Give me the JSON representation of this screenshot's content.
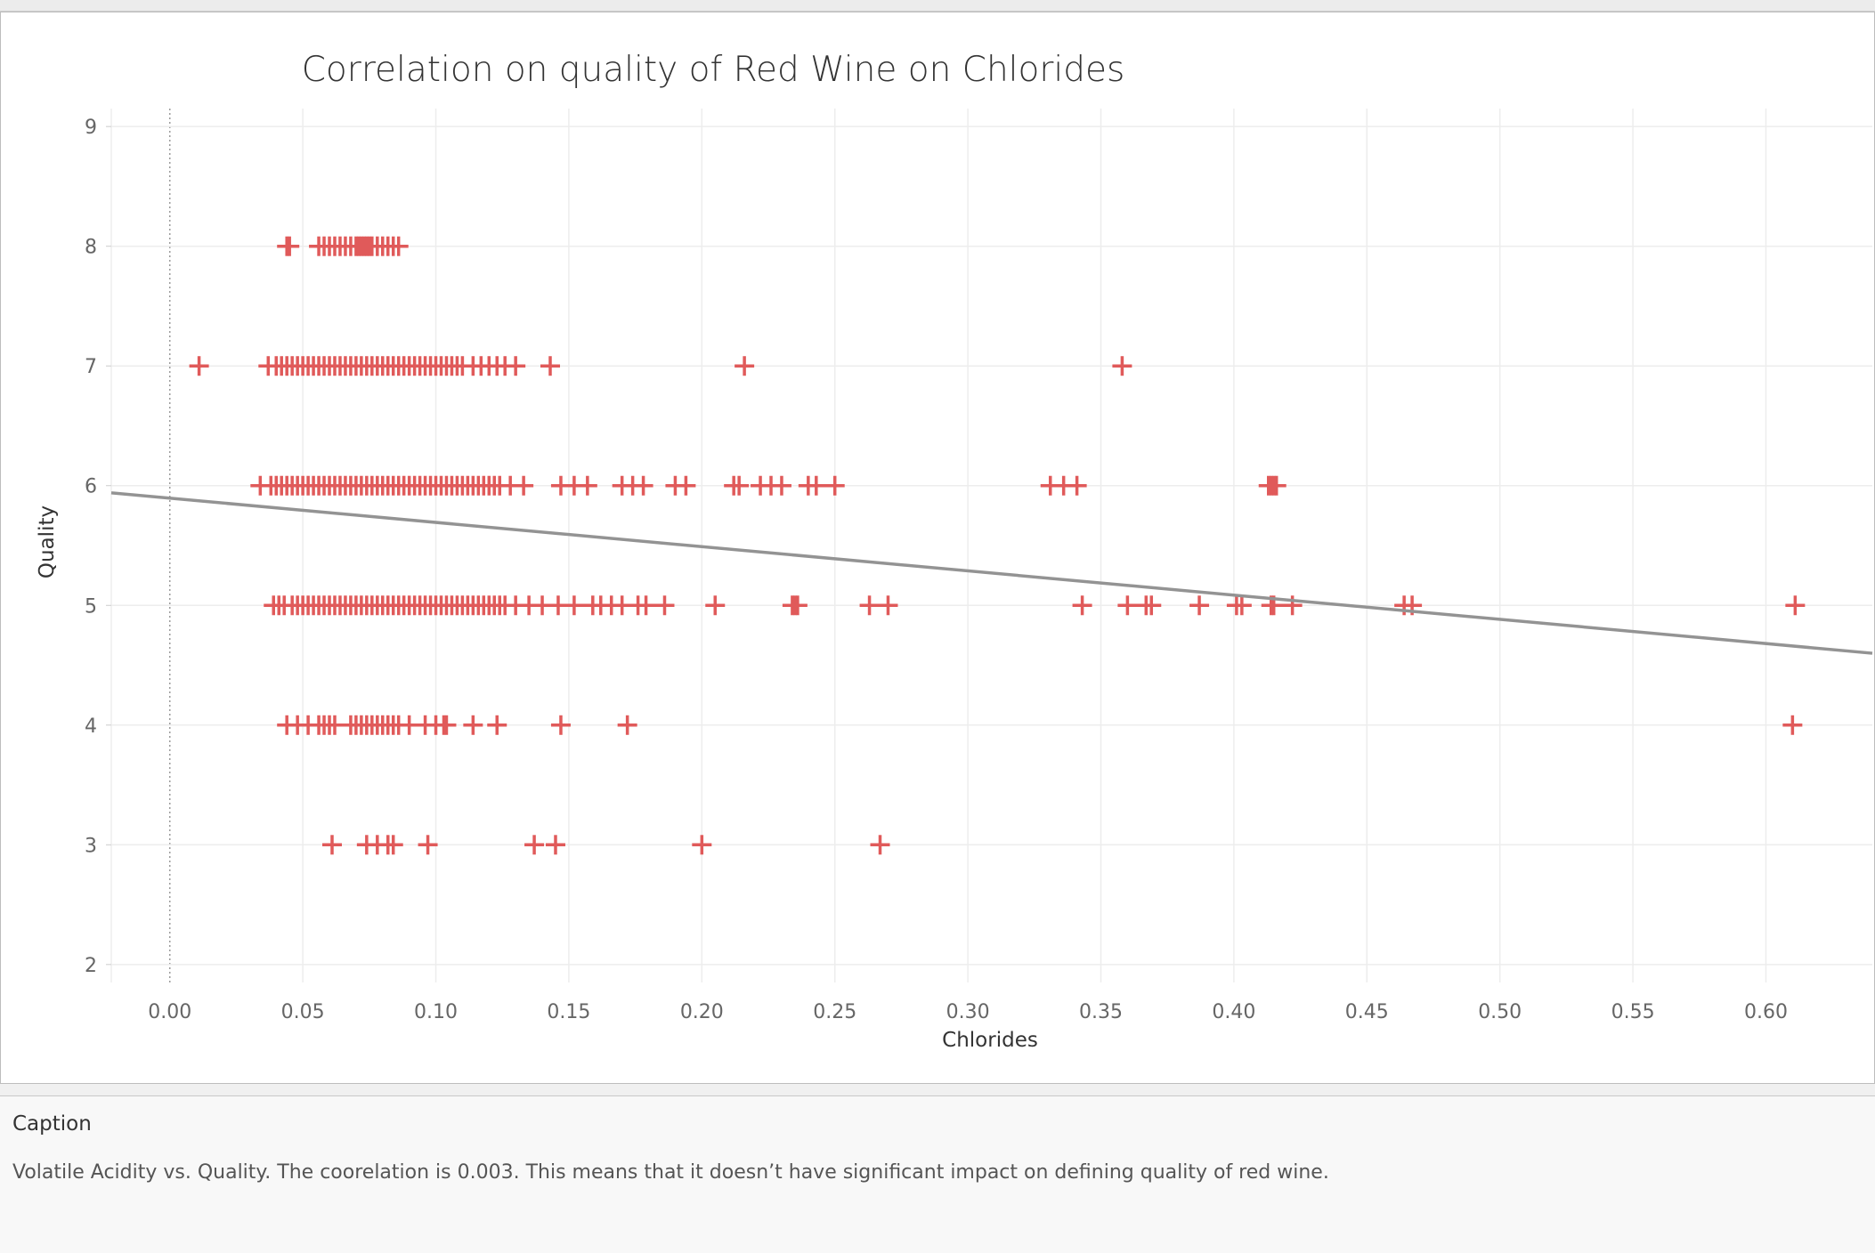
{
  "chart_data": {
    "type": "scatter",
    "title": "Correlation on quality of Red Wine on Chlorides",
    "xlabel": "Chlorides",
    "ylabel": "Quality",
    "xlim": [
      -0.022,
      0.64
    ],
    "ylim": [
      1.85,
      9.15
    ],
    "x_ticks": [
      "0.00",
      "0.05",
      "0.10",
      "0.15",
      "0.20",
      "0.25",
      "0.30",
      "0.35",
      "0.40",
      "0.45",
      "0.50",
      "0.55",
      "0.60"
    ],
    "y_ticks": [
      "2",
      "3",
      "4",
      "5",
      "6",
      "7",
      "8",
      "9"
    ],
    "grid": true,
    "marker": "plus",
    "marker_color": "#e05a5a",
    "trend_color": "#939393",
    "zero_line_color": "#9a9a9a",
    "trend_line": {
      "x": [
        -0.022,
        0.64
      ],
      "y": [
        5.94,
        4.6
      ]
    },
    "points": [
      {
        "quality": 8,
        "chlorides": [
          0.044,
          0.045,
          0.056,
          0.058,
          0.06,
          0.062,
          0.064,
          0.066,
          0.068,
          0.07,
          0.071,
          0.072,
          0.073,
          0.074,
          0.075,
          0.076,
          0.078,
          0.08,
          0.082,
          0.084,
          0.086
        ]
      },
      {
        "quality": 7,
        "chlorides": [
          0.011,
          0.037,
          0.04,
          0.042,
          0.044,
          0.046,
          0.048,
          0.05,
          0.052,
          0.054,
          0.056,
          0.058,
          0.06,
          0.062,
          0.064,
          0.066,
          0.068,
          0.07,
          0.072,
          0.074,
          0.076,
          0.078,
          0.08,
          0.082,
          0.084,
          0.086,
          0.088,
          0.09,
          0.092,
          0.094,
          0.096,
          0.098,
          0.1,
          0.102,
          0.104,
          0.106,
          0.108,
          0.11,
          0.114,
          0.117,
          0.12,
          0.123,
          0.126,
          0.13,
          0.143,
          0.216,
          0.358
        ]
      },
      {
        "quality": 6,
        "chlorides": [
          0.034,
          0.038,
          0.04,
          0.042,
          0.044,
          0.046,
          0.048,
          0.05,
          0.052,
          0.054,
          0.056,
          0.058,
          0.06,
          0.062,
          0.064,
          0.066,
          0.068,
          0.07,
          0.072,
          0.074,
          0.076,
          0.078,
          0.08,
          0.082,
          0.084,
          0.086,
          0.088,
          0.09,
          0.092,
          0.094,
          0.096,
          0.098,
          0.1,
          0.102,
          0.104,
          0.106,
          0.108,
          0.11,
          0.112,
          0.114,
          0.116,
          0.118,
          0.12,
          0.122,
          0.124,
          0.128,
          0.133,
          0.147,
          0.152,
          0.157,
          0.17,
          0.174,
          0.178,
          0.19,
          0.194,
          0.212,
          0.214,
          0.222,
          0.226,
          0.23,
          0.24,
          0.243,
          0.25,
          0.331,
          0.336,
          0.341,
          0.413,
          0.414,
          0.415,
          0.416
        ]
      },
      {
        "quality": 5,
        "chlorides": [
          0.039,
          0.041,
          0.043,
          0.046,
          0.048,
          0.05,
          0.052,
          0.054,
          0.056,
          0.058,
          0.06,
          0.062,
          0.064,
          0.066,
          0.068,
          0.07,
          0.072,
          0.074,
          0.076,
          0.078,
          0.08,
          0.082,
          0.084,
          0.086,
          0.088,
          0.09,
          0.092,
          0.094,
          0.096,
          0.098,
          0.1,
          0.102,
          0.104,
          0.106,
          0.108,
          0.11,
          0.112,
          0.114,
          0.116,
          0.118,
          0.12,
          0.122,
          0.124,
          0.126,
          0.13,
          0.135,
          0.14,
          0.146,
          0.152,
          0.159,
          0.162,
          0.166,
          0.17,
          0.176,
          0.179,
          0.186,
          0.205,
          0.234,
          0.235,
          0.236,
          0.263,
          0.27,
          0.343,
          0.36,
          0.367,
          0.369,
          0.387,
          0.401,
          0.403,
          0.414,
          0.415,
          0.422,
          0.464,
          0.467,
          0.611
        ]
      },
      {
        "quality": 4,
        "chlorides": [
          0.044,
          0.048,
          0.052,
          0.056,
          0.058,
          0.06,
          0.062,
          0.068,
          0.07,
          0.072,
          0.074,
          0.076,
          0.078,
          0.08,
          0.082,
          0.084,
          0.086,
          0.09,
          0.096,
          0.1,
          0.103,
          0.104,
          0.114,
          0.123,
          0.147,
          0.172,
          0.61
        ]
      },
      {
        "quality": 3,
        "chlorides": [
          0.061,
          0.074,
          0.078,
          0.082,
          0.084,
          0.097,
          0.137,
          0.145,
          0.2,
          0.267
        ]
      }
    ]
  },
  "caption": {
    "title": "Caption",
    "text": "Volatile Acidity vs. Quality. The coorelation is 0.003. This means that it doesn’t have significant impact on defining quality of red wine."
  }
}
